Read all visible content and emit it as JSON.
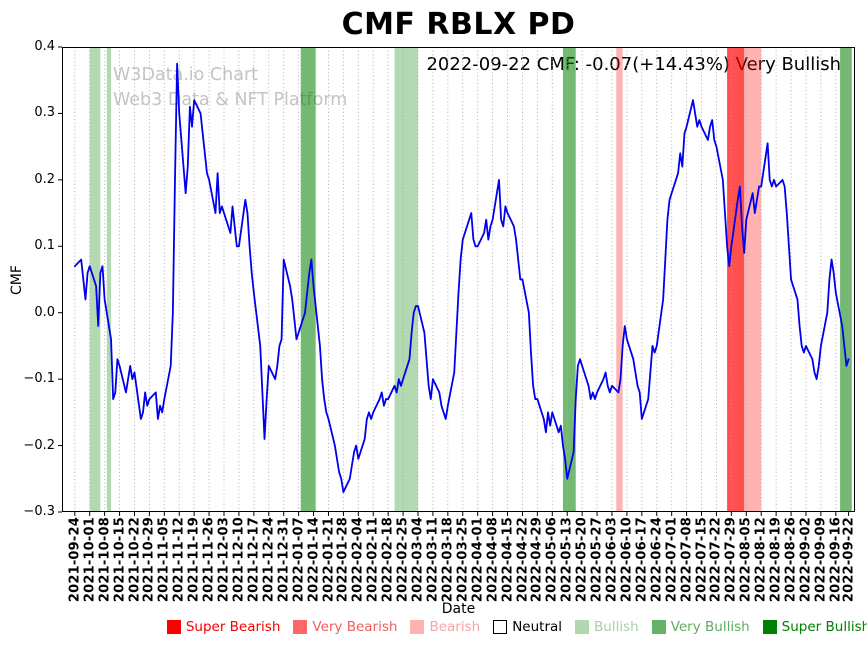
{
  "title": "CMF RBLX PD",
  "annotation": "2022-09-22 CMF: -0.07(+14.43%) Very Bullish",
  "watermark": {
    "line1": "W3Data.io Chart",
    "line2": "Web3 Data & NFT Platform"
  },
  "chart_data": {
    "type": "line",
    "title": "CMF RBLX PD",
    "xlabel": "Date",
    "ylabel": "CMF",
    "start_date": "2021-09-24",
    "end_date": "2022-09-22",
    "frequency": "daily (weekdays)",
    "weekday_offsets": [
      0,
      3,
      4,
      5,
      6
    ],
    "ylim": [
      -0.3,
      0.4
    ],
    "xlim_days": [
      -6,
      366
    ],
    "grid": "vertical dotted at weekly ticks",
    "line_color": "#0000ee",
    "y_ticks": [
      0.4,
      0.3,
      0.2,
      0.1,
      0.0,
      -0.1,
      -0.2,
      -0.3
    ],
    "y_tick_labels": [
      "0.4",
      "0.3",
      "0.2",
      "0.1",
      "0.0",
      "−0.1",
      "−0.2",
      "−0.3"
    ],
    "x_tick_labels": [
      "2021-09-24",
      "2021-10-01",
      "2021-10-08",
      "2021-10-15",
      "2021-10-22",
      "2021-10-29",
      "2021-11-05",
      "2021-11-12",
      "2021-11-19",
      "2021-11-26",
      "2021-12-03",
      "2021-12-10",
      "2021-12-17",
      "2021-12-24",
      "2021-12-31",
      "2022-01-07",
      "2022-01-14",
      "2022-01-21",
      "2022-01-28",
      "2022-02-04",
      "2022-02-11",
      "2022-02-18",
      "2022-02-25",
      "2022-03-04",
      "2022-03-11",
      "2022-03-18",
      "2022-03-25",
      "2022-04-01",
      "2022-04-08",
      "2022-04-15",
      "2022-04-22",
      "2022-04-29",
      "2022-05-06",
      "2022-05-13",
      "2022-05-20",
      "2022-05-27",
      "2022-06-03",
      "2022-06-10",
      "2022-06-17",
      "2022-06-24",
      "2022-07-01",
      "2022-07-08",
      "2022-07-15",
      "2022-07-22",
      "2022-07-29",
      "2022-08-05",
      "2022-08-12",
      "2022-08-19",
      "2022-08-26",
      "2022-09-02",
      "2022-09-09",
      "2022-09-16",
      "2022-09-22"
    ],
    "series": [
      {
        "name": "CMF",
        "values": [
          0.07,
          0.08,
          0.05,
          0.02,
          0.06,
          0.07,
          0.04,
          -0.02,
          0.06,
          0.07,
          0.02,
          -0.04,
          -0.13,
          -0.12,
          -0.07,
          -0.08,
          -0.12,
          -0.1,
          -0.08,
          -0.1,
          -0.09,
          -0.16,
          -0.15,
          -0.12,
          -0.14,
          -0.13,
          -0.12,
          -0.16,
          -0.14,
          -0.15,
          -0.13,
          -0.08,
          0.0,
          0.2,
          0.375,
          0.3,
          0.18,
          0.22,
          0.31,
          0.28,
          0.32,
          0.3,
          0.27,
          0.24,
          0.21,
          0.2,
          0.15,
          0.21,
          0.15,
          0.16,
          0.15,
          0.12,
          0.16,
          0.13,
          0.1,
          0.1,
          0.17,
          0.15,
          0.1,
          0.06,
          0.03,
          -0.05,
          -0.12,
          -0.19,
          -0.13,
          -0.08,
          -0.1,
          -0.08,
          -0.05,
          -0.04,
          0.08,
          0.04,
          0.02,
          -0.01,
          -0.04,
          -0.03,
          0.0,
          0.03,
          0.06,
          0.08,
          0.04,
          -0.05,
          -0.1,
          -0.13,
          -0.15,
          -0.16,
          -0.2,
          -0.22,
          -0.24,
          -0.25,
          -0.27,
          -0.25,
          -0.23,
          -0.21,
          -0.2,
          -0.22,
          -0.19,
          -0.16,
          -0.15,
          -0.16,
          -0.15,
          -0.13,
          -0.12,
          -0.14,
          -0.13,
          -0.13,
          -0.11,
          -0.12,
          -0.1,
          -0.11,
          -0.1,
          -0.07,
          -0.03,
          0.0,
          0.01,
          0.01,
          -0.03,
          -0.07,
          -0.11,
          -0.13,
          -0.1,
          -0.12,
          -0.14,
          -0.15,
          -0.16,
          -0.14,
          -0.09,
          -0.03,
          0.03,
          0.08,
          0.11,
          0.14,
          0.15,
          0.11,
          0.1,
          0.1,
          0.12,
          0.14,
          0.11,
          0.13,
          0.14,
          0.2,
          0.14,
          0.13,
          0.16,
          0.15,
          0.13,
          0.11,
          0.08,
          0.05,
          0.05,
          0.0,
          -0.06,
          -0.11,
          -0.13,
          -0.13,
          -0.16,
          -0.18,
          -0.15,
          -0.17,
          -0.15,
          -0.18,
          -0.17,
          -0.2,
          -0.22,
          -0.25,
          -0.21,
          -0.13,
          -0.08,
          -0.07,
          -0.08,
          -0.11,
          -0.13,
          -0.12,
          -0.13,
          -0.12,
          -0.1,
          -0.09,
          -0.11,
          -0.12,
          -0.11,
          -0.12,
          -0.1,
          -0.05,
          -0.02,
          -0.04,
          -0.07,
          -0.09,
          -0.11,
          -0.12,
          -0.16,
          -0.13,
          -0.09,
          -0.05,
          -0.06,
          -0.05,
          0.02,
          0.08,
          0.14,
          0.17,
          0.18,
          0.21,
          0.24,
          0.22,
          0.27,
          0.28,
          0.32,
          0.3,
          0.28,
          0.29,
          0.28,
          0.26,
          0.28,
          0.29,
          0.26,
          0.25,
          0.2,
          0.15,
          0.1,
          0.07,
          0.1,
          0.17,
          0.19,
          0.13,
          0.09,
          0.14,
          0.18,
          0.15,
          0.17,
          0.19,
          0.19,
          0.255,
          0.2,
          0.19,
          0.2,
          0.19,
          0.2,
          0.19,
          0.15,
          0.1,
          0.05,
          0.02,
          -0.02,
          -0.05,
          -0.06,
          -0.05,
          -0.07,
          -0.09,
          -0.1,
          -0.08,
          -0.05,
          0.0,
          0.05,
          0.08,
          0.06,
          0.03,
          -0.02,
          -0.05,
          -0.08,
          -0.07
        ]
      }
    ],
    "signal_colors": {
      "Super Bearish": "rgba(255,0,0,1)",
      "Very Bearish": "rgba(255,0,0,0.55)",
      "Bearish": "rgba(255,0,0,0.3)",
      "Neutral": "rgba(255,255,255,1)",
      "Bullish": "rgba(0,128,0,0.3)",
      "Very Bullish": "rgba(0,128,0,0.55)",
      "Super Bullish": "rgba(0,128,0,1)"
    },
    "bands": [
      {
        "start": "2021-10-01",
        "end": "2021-10-06",
        "start_day": 7,
        "end_day": 12,
        "level": "Bullish"
      },
      {
        "start": "2021-10-09",
        "end": "2021-10-11",
        "start_day": 15,
        "end_day": 17,
        "level": "Bullish"
      },
      {
        "start": "2022-01-08",
        "end": "2022-01-15",
        "start_day": 106,
        "end_day": 113,
        "level": "Very Bullish"
      },
      {
        "start": "2022-02-21",
        "end": "2022-03-04",
        "start_day": 150,
        "end_day": 161,
        "level": "Bullish"
      },
      {
        "start": "2022-05-11",
        "end": "2022-05-17",
        "start_day": 229,
        "end_day": 235,
        "level": "Very Bullish"
      },
      {
        "start": "2022-06-05",
        "end": "2022-06-08",
        "start_day": 254,
        "end_day": 257,
        "level": "Bearish"
      },
      {
        "start": "2022-07-27",
        "end": "2022-08-12",
        "start_day": 306,
        "end_day": 322,
        "level": "Bearish"
      },
      {
        "start": "2022-07-27",
        "end": "2022-08-04",
        "start_day": 306,
        "end_day": 314,
        "level": "Very Bearish"
      },
      {
        "start": "2022-09-18",
        "end": "2022-09-23",
        "start_day": 359,
        "end_day": 364.5,
        "level": "Very Bullish"
      }
    ],
    "legend": [
      {
        "label": "Super Bearish",
        "color": "#fa0000",
        "label_color": "#fa0000"
      },
      {
        "label": "Very Bearish",
        "color": "#ff6666",
        "label_color": "#f0605c"
      },
      {
        "label": "Bearish",
        "color": "#ffb2b2",
        "label_color": "#f5a3a3"
      },
      {
        "label": "Neutral",
        "color": "#ffffff",
        "label_color": "#000000",
        "edge": true
      },
      {
        "label": "Bullish",
        "color": "#b2d8b2",
        "label_color": "#a8cfa8"
      },
      {
        "label": "Very Bullish",
        "color": "#66b266",
        "label_color": "#5ead5e"
      },
      {
        "label": "Super Bullish",
        "color": "#008000",
        "label_color": "#008000"
      }
    ],
    "legend_position": "bottom center"
  }
}
